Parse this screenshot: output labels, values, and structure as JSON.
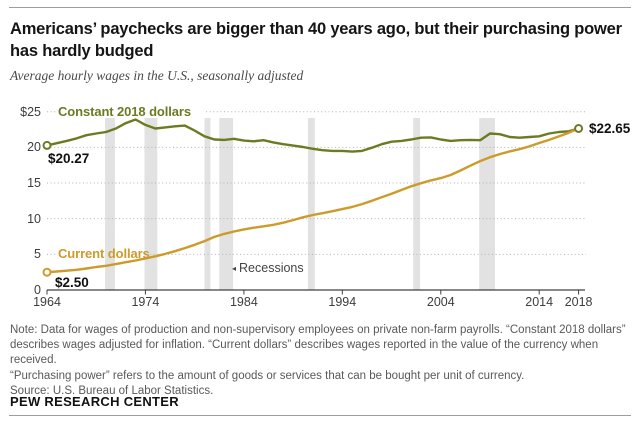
{
  "header": {
    "title_line1": "Americans’ paychecks are bigger than 40 years ago, but their purchasing power",
    "title_line2": "has hardly budged",
    "subtitle": "Average hourly wages in the U.S., seasonally adjusted"
  },
  "chart_data": {
    "type": "line",
    "title": "Americans’ paychecks are bigger than 40 years ago, but their purchasing power has hardly budged",
    "subtitle": "Average hourly wages in the U.S., seasonally adjusted",
    "xlim": [
      1964,
      2018.8
    ],
    "ylim": [
      0,
      25.8
    ],
    "grid": "dotted horizontal gridlines",
    "legend_position": "inline line labels",
    "x": [
      1964,
      1965,
      1966,
      1967,
      1968,
      1969,
      1970,
      1971,
      1972,
      1973,
      1974,
      1975,
      1976,
      1977,
      1978,
      1979,
      1980,
      1981,
      1982,
      1983,
      1984,
      1985,
      1986,
      1987,
      1988,
      1989,
      1990,
      1991,
      1992,
      1993,
      1994,
      1995,
      1996,
      1997,
      1998,
      1999,
      2000,
      2001,
      2002,
      2003,
      2004,
      2005,
      2006,
      2007,
      2008,
      2009,
      2010,
      2011,
      2012,
      2013,
      2014,
      2015,
      2016,
      2017,
      2018
    ],
    "series": [
      {
        "name": "Constant 2018 dollars",
        "color": "#6d7a22",
        "values": [
          20.27,
          20.58,
          20.9,
          21.25,
          21.7,
          21.95,
          22.15,
          22.65,
          23.4,
          23.9,
          23.15,
          22.65,
          22.8,
          22.95,
          23.05,
          22.35,
          21.55,
          21.1,
          21.05,
          21.2,
          20.95,
          20.85,
          21.0,
          20.7,
          20.45,
          20.25,
          20.05,
          19.8,
          19.6,
          19.5,
          19.5,
          19.4,
          19.5,
          19.95,
          20.45,
          20.8,
          20.9,
          21.1,
          21.35,
          21.4,
          21.1,
          20.9,
          21.0,
          21.05,
          21.0,
          21.95,
          21.85,
          21.45,
          21.35,
          21.45,
          21.55,
          21.95,
          22.15,
          22.25,
          22.65
        ]
      },
      {
        "name": "Current dollars",
        "color": "#cd9b2a",
        "values": [
          2.5,
          2.6,
          2.71,
          2.83,
          3.01,
          3.22,
          3.4,
          3.63,
          3.9,
          4.14,
          4.43,
          4.73,
          5.06,
          5.44,
          5.88,
          6.34,
          6.85,
          7.44,
          7.87,
          8.2,
          8.49,
          8.74,
          8.93,
          9.14,
          9.44,
          9.8,
          10.2,
          10.52,
          10.77,
          11.05,
          11.34,
          11.65,
          12.04,
          12.51,
          13.01,
          13.49,
          14.02,
          14.54,
          14.97,
          15.37,
          15.69,
          16.13,
          16.76,
          17.43,
          18.08,
          18.62,
          19.05,
          19.44,
          19.74,
          20.13,
          20.61,
          21.04,
          21.54,
          22.05,
          22.65
        ]
      }
    ],
    "x_ticks": [
      {
        "value": 1964,
        "label": "1964"
      },
      {
        "value": 1974,
        "label": "1974"
      },
      {
        "value": 1984,
        "label": "1984"
      },
      {
        "value": 1994,
        "label": "1994"
      },
      {
        "value": 2004,
        "label": "2004"
      },
      {
        "value": 2014,
        "label": "2014"
      },
      {
        "value": 2018,
        "label": "2018"
      }
    ],
    "y_ticks": [
      {
        "value": 0,
        "label": "0"
      },
      {
        "value": 5,
        "label": "5"
      },
      {
        "value": 10,
        "label": "10"
      },
      {
        "value": 15,
        "label": "15"
      },
      {
        "value": 20,
        "label": "20"
      },
      {
        "value": 25,
        "label": "$25"
      }
    ],
    "recessions": [
      [
        1969.9,
        1970.9
      ],
      [
        1973.9,
        1975.2
      ],
      [
        1980.0,
        1980.6
      ],
      [
        1981.5,
        1982.9
      ],
      [
        1990.5,
        1991.2
      ],
      [
        2001.2,
        2001.9
      ],
      [
        2007.9,
        2009.5
      ]
    ],
    "recession_band_color": "#e2e2e2",
    "markers": [
      {
        "year": 1964,
        "value": 20.27,
        "color": "#6d7a22"
      },
      {
        "year": 1964,
        "value": 2.5,
        "color": "#cd9b2a"
      },
      {
        "year": 2018,
        "value": 22.65,
        "color": "#6d7a22"
      }
    ],
    "annotations": {
      "start_constant": "$20.27",
      "start_current": "$2.50",
      "end_value": "$22.65",
      "recessions_arrow": "◂",
      "recessions_label": "Recessions"
    }
  },
  "notes": {
    "lines": [
      "Note: Data for wages of production and non-supervisory employees on private non-farm payrolls. “Constant 2018 dollars”",
      "describes wages adjusted for inflation. “Current dollars” describes wages reported in the value of the currency when received.",
      "“Purchasing power” refers to the amount of goods or services that can be bought per unit of currency."
    ],
    "source": "Source: U.S. Bureau of Labor Statistics.",
    "brand": "PEW RESEARCH CENTER"
  }
}
